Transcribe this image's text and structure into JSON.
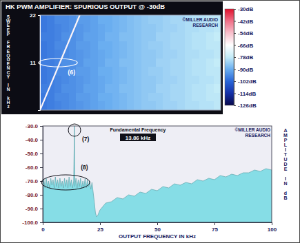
{
  "chart_data": [
    {
      "type": "heatmap",
      "title": "HK PWM AMPLIFIER: SPURIOUS OUTPUT @ -30dB",
      "ylabel": "SWEEP FREQUENCY IN kHz",
      "xlim": [
        0,
        100
      ],
      "ylim": [
        0,
        22
      ],
      "yticks": [
        22,
        11
      ],
      "tick_labels": "y",
      "xbins": [
        0,
        4,
        8,
        12,
        16,
        20,
        24,
        28,
        32,
        36,
        40,
        44,
        48,
        52,
        56,
        60,
        64,
        68,
        72,
        76,
        80,
        84,
        88,
        92,
        96,
        100
      ],
      "ybins": [
        0,
        2,
        4,
        6,
        8,
        10,
        12,
        14,
        16,
        18,
        20,
        22
      ],
      "cells": [
        [
          -99,
          -98,
          -97,
          -96,
          -95,
          -94,
          -93,
          -92,
          -91,
          -90,
          -89,
          -88,
          -87,
          -86,
          -85,
          -85,
          -84,
          -83,
          -83,
          -82,
          -81,
          -81,
          -80,
          -80,
          -79
        ],
        [
          -99,
          -98,
          -96,
          -96,
          -95,
          -93,
          -93,
          -92,
          -90,
          -90,
          -89,
          -88,
          -87,
          -86,
          -85,
          -84,
          -84,
          -83,
          -82,
          -82,
          -81,
          -80,
          -80,
          -79,
          -79
        ],
        [
          -98,
          -98,
          -97,
          -95,
          -95,
          -94,
          -92,
          -92,
          -91,
          -89,
          -89,
          -87,
          -87,
          -86,
          -85,
          -85,
          -83,
          -83,
          -82,
          -82,
          -81,
          -80,
          -80,
          -79,
          -78
        ],
        [
          -99,
          -98,
          -97,
          -96,
          -95,
          -94,
          -93,
          -92,
          -91,
          -90,
          -89,
          -88,
          -87,
          -86,
          -85,
          -85,
          -84,
          -83,
          -83,
          -82,
          -81,
          -81,
          -80,
          -80,
          -79
        ],
        [
          -99,
          -98,
          -96,
          -96,
          -95,
          -93,
          -93,
          -92,
          -90,
          -90,
          -89,
          -88,
          -87,
          -86,
          -85,
          -84,
          -84,
          -83,
          -82,
          -82,
          -81,
          -80,
          -80,
          -79,
          -79
        ],
        [
          -98,
          -98,
          -97,
          -95,
          -95,
          -94,
          -92,
          -92,
          -91,
          -89,
          -89,
          -87,
          -87,
          -86,
          -85,
          -85,
          -83,
          -83,
          -82,
          -82,
          -81,
          -80,
          -80,
          -79,
          -78
        ],
        [
          -99,
          -98,
          -97,
          -96,
          -95,
          -94,
          -93,
          -92,
          -91,
          -90,
          -89,
          -88,
          -87,
          -86,
          -85,
          -85,
          -84,
          -83,
          -83,
          -82,
          -81,
          -81,
          -80,
          -80,
          -79
        ],
        [
          -99,
          -98,
          -96,
          -96,
          -95,
          -93,
          -93,
          -92,
          -90,
          -90,
          -89,
          -88,
          -87,
          -86,
          -85,
          -84,
          -84,
          -83,
          -82,
          -82,
          -81,
          -80,
          -80,
          -79,
          -79
        ],
        [
          -98,
          -98,
          -97,
          -95,
          -95,
          -94,
          -92,
          -92,
          -91,
          -89,
          -89,
          -87,
          -87,
          -86,
          -85,
          -85,
          -83,
          -83,
          -82,
          -82,
          -81,
          -80,
          -80,
          -79,
          -78
        ],
        [
          -99,
          -98,
          -97,
          -96,
          -95,
          -94,
          -93,
          -92,
          -91,
          -90,
          -89,
          -88,
          -87,
          -86,
          -85,
          -85,
          -84,
          -83,
          -83,
          -82,
          -81,
          -81,
          -80,
          -80,
          -79
        ],
        [
          -99,
          -98,
          -96,
          -96,
          -95,
          -93,
          -93,
          -92,
          -90,
          -90,
          -89,
          -88,
          -87,
          -86,
          -85,
          -84,
          -84,
          -83,
          -82,
          -82,
          -81,
          -80,
          -80,
          -79,
          -79
        ]
      ],
      "fundamental": {
        "output": [
          0,
          22
        ],
        "sweep": [
          0,
          22
        ],
        "value": -64
      },
      "colorbar": {
        "range": [
          -126,
          -30
        ],
        "ticks": [
          {
            "value": -30,
            "label": "-30dB"
          },
          {
            "value": -42,
            "label": "-42dB"
          },
          {
            "value": -54,
            "label": "-54dB"
          },
          {
            "value": -66,
            "label": "-66dB"
          },
          {
            "value": -78,
            "label": "-78dB"
          },
          {
            "value": -90,
            "label": "-90dB"
          },
          {
            "value": -102,
            "label": "-102dB"
          },
          {
            "value": -114,
            "label": "-114dB"
          },
          {
            "value": -126,
            "label": "-126dB"
          }
        ]
      },
      "credit": [
        "©MILLER AUDIO",
        "RESEARCH"
      ],
      "annotations": [
        {
          "text": "(6)",
          "x": 10,
          "y": 11
        }
      ]
    },
    {
      "type": "area",
      "xlabel": "OUTPUT FREQUENCY IN kHz",
      "ylabel": "AMPLITUDE IN dB",
      "color": "#86dde6",
      "x": [
        0,
        0.5,
        1,
        1.5,
        2,
        2.5,
        3,
        3.5,
        4,
        4.5,
        5,
        5.5,
        6,
        6.5,
        7,
        7.5,
        8,
        8.5,
        9,
        9.5,
        10,
        10.5,
        11,
        11.5,
        12,
        12.5,
        13,
        13.5,
        13.86,
        14,
        14.5,
        15,
        15.5,
        16,
        16.5,
        17,
        17.5,
        18,
        18.5,
        19,
        19.5,
        20,
        20.5,
        21,
        21.5,
        22,
        22.5,
        23,
        23.5,
        24,
        25,
        27.5,
        30,
        32.5,
        35,
        37.5,
        40,
        42.5,
        45,
        47.5,
        50,
        52.5,
        55,
        57.5,
        60,
        62.5,
        65,
        67.5,
        70,
        72.5,
        75,
        77.5,
        80,
        82.5,
        85,
        87.5,
        90,
        92.5,
        95,
        97.5,
        100
      ],
      "values": [
        -74,
        -69,
        -75,
        -68,
        -74,
        -70,
        -75,
        -68,
        -73,
        -69,
        -75,
        -67,
        -74,
        -69,
        -75,
        -68,
        -74,
        -70,
        -75,
        -68,
        -74,
        -69,
        -75,
        -67,
        -74,
        -69,
        -75,
        -70,
        -30,
        -74,
        -68,
        -75,
        -69,
        -74,
        -68,
        -75,
        -70,
        -74,
        -68,
        -75,
        -69,
        -74,
        -70,
        -76,
        -71,
        -78,
        -85,
        -93,
        -96,
        -95,
        -91,
        -86,
        -85,
        -82,
        -83,
        -80,
        -81,
        -78,
        -79,
        -76,
        -77,
        -74,
        -75,
        -72,
        -73,
        -71,
        -72,
        -69,
        -70,
        -68,
        -69,
        -66,
        -67,
        -65,
        -66,
        -64,
        -64,
        -62,
        -63,
        -61,
        -62
      ],
      "xlim": [
        0,
        100
      ],
      "ylim": [
        -100,
        -30
      ],
      "xticks": [
        0,
        25,
        50,
        75,
        100
      ],
      "yticks": [
        {
          "value": -30,
          "label": "-30.0"
        },
        {
          "value": -40,
          "label": "-40.0"
        },
        {
          "value": -50,
          "label": "-50.0"
        },
        {
          "value": -60,
          "label": "-60.0"
        },
        {
          "value": -70,
          "label": "-70.0"
        },
        {
          "value": -80,
          "label": "-80.0"
        },
        {
          "value": -90,
          "label": "-90.0"
        },
        {
          "value": -100,
          "label": "-100.0"
        }
      ],
      "readout": {
        "label": "Fundamental Frequency",
        "text": "13.86 kHz"
      },
      "credit": [
        "©MILLER AUDIO",
        "RESEARCH"
      ],
      "annotations": [
        {
          "text": "(7)",
          "x": 13.86,
          "y": -33
        },
        {
          "text": "(8)",
          "x": 10,
          "y": -71
        }
      ]
    }
  ]
}
